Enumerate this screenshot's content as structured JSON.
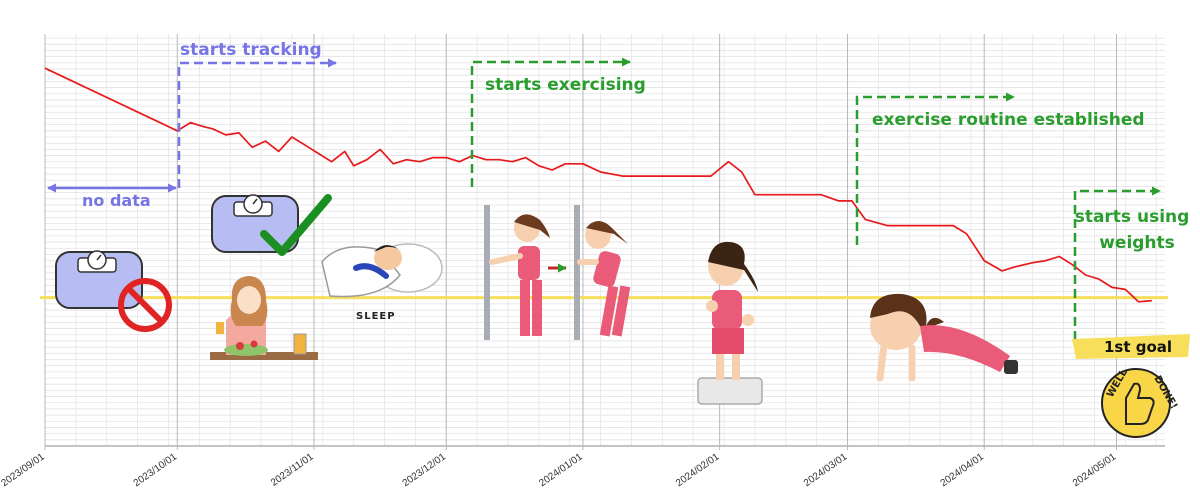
{
  "chart_data": {
    "type": "line",
    "title": "",
    "xlabel": "",
    "ylabel": "",
    "x_type": "date",
    "xlim": [
      "2023-09-01",
      "2024-05-12"
    ],
    "ylim": [
      0,
      100
    ],
    "grid": true,
    "x_tick_labels": [
      "2023/09/01",
      "2023/10/01",
      "2023/11/01",
      "2023/12/01",
      "2024/01/01",
      "2024/02/01",
      "2024/03/01",
      "2024/04/01",
      "2024/05/01"
    ],
    "series": [
      {
        "color": "#e8191b",
        "x": [
          "2023-09-01",
          "2023-10-01",
          "2023-10-04",
          "2023-10-07",
          "2023-10-09",
          "2023-10-12",
          "2023-10-15",
          "2023-10-18",
          "2023-10-21",
          "2023-10-24",
          "2023-10-27",
          "2023-10-30",
          "2023-11-02",
          "2023-11-05",
          "2023-11-08",
          "2023-11-10",
          "2023-11-13",
          "2023-11-16",
          "2023-11-19",
          "2023-11-22",
          "2023-11-25",
          "2023-11-28",
          "2023-12-01",
          "2023-12-04",
          "2023-12-07",
          "2023-12-10",
          "2023-12-13",
          "2023-12-16",
          "2023-12-19",
          "2023-12-22",
          "2023-12-25",
          "2023-12-28",
          "2024-01-01",
          "2024-01-05",
          "2024-01-10",
          "2024-01-15",
          "2024-01-20",
          "2024-01-25",
          "2024-01-30",
          "2024-02-03",
          "2024-02-06",
          "2024-02-09",
          "2024-02-12",
          "2024-02-16",
          "2024-02-20",
          "2024-02-24",
          "2024-02-28",
          "2024-03-02",
          "2024-03-05",
          "2024-03-10",
          "2024-03-15",
          "2024-03-20",
          "2024-03-25",
          "2024-03-28",
          "2024-04-01",
          "2024-04-05",
          "2024-04-08",
          "2024-04-12",
          "2024-04-15",
          "2024-04-18",
          "2024-04-21",
          "2024-04-24",
          "2024-04-27",
          "2024-04-30",
          "2024-05-03",
          "2024-05-06",
          "2024-05-09"
        ],
        "y": [
          91.7,
          76.5,
          78.5,
          77.5,
          77.0,
          75.5,
          76.0,
          72.5,
          74.0,
          71.5,
          75.0,
          73.0,
          71.0,
          69.0,
          71.5,
          68.0,
          69.5,
          72.0,
          68.5,
          69.5,
          69.0,
          70.0,
          70.0,
          69.0,
          70.5,
          69.5,
          69.5,
          69.0,
          70.0,
          68.0,
          67.0,
          68.5,
          68.5,
          66.5,
          65.5,
          65.5,
          65.5,
          65.5,
          65.5,
          69.0,
          66.5,
          61.0,
          61.0,
          61.0,
          61.0,
          61.0,
          59.5,
          59.5,
          55.0,
          53.5,
          53.5,
          53.5,
          53.5,
          51.5,
          45.0,
          42.5,
          43.5,
          44.5,
          45.0,
          46.0,
          44.0,
          41.5,
          40.5,
          38.5,
          38.0,
          35.0,
          35.3
        ]
      }
    ],
    "reference_lines": [
      {
        "y": 36.0,
        "color": "#f7df5c",
        "label": "1st goal"
      }
    ],
    "annotations": [
      {
        "text": "no data",
        "color": "#7575e6"
      },
      {
        "text": "starts tracking",
        "color": "#7575e6"
      },
      {
        "text": "starts exercising",
        "color": "#2a9d2e"
      },
      {
        "text": "exercise routine established",
        "color": "#2a9d2e"
      },
      {
        "text_lines": [
          "starts using",
          "weights"
        ],
        "color": "#2a9d2e"
      }
    ]
  },
  "illustrations": {
    "sleep_label": "SLEEP",
    "badge_lines": [
      "WELL",
      "DONE!"
    ],
    "icons": [
      "scale-crossed-icon",
      "scale-checkmark-icon",
      "woman-eating-salad-icon",
      "sleeping-person-icon",
      "wall-stretch-girl-icon",
      "step-exercise-girl-icon",
      "plank-pushup-girl-icon",
      "well-done-thumbs-up-badge-icon"
    ],
    "colors": {
      "red_line": "#e8191b",
      "goal_line": "#f7df5c",
      "blue_annotation": "#7575e6",
      "green_annotation": "#2a9d2e"
    }
  }
}
